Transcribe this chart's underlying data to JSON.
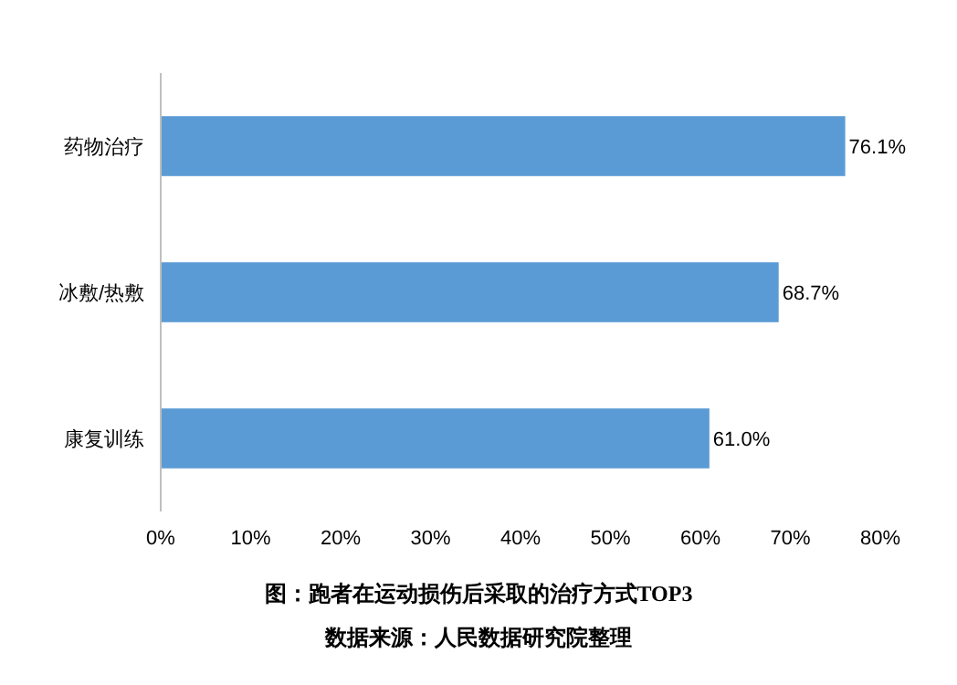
{
  "chart_data": {
    "type": "bar",
    "orientation": "horizontal",
    "title": "图：跑者在运动损伤后采取的治疗方式TOP3",
    "annotations": [
      "数据来源：人民数据研究院整理"
    ],
    "categories": [
      "药物治疗",
      "冰敷/热敷",
      "康复训练"
    ],
    "values": [
      76.1,
      68.7,
      61.0
    ],
    "color": "#5b9bd5",
    "value_labels": [
      "76.1%",
      "68.7%",
      "61.0%"
    ],
    "xlim": [
      0,
      80
    ],
    "xticks": [
      {
        "value": 0,
        "label": "0%"
      },
      {
        "value": 10,
        "label": "10%"
      },
      {
        "value": 20,
        "label": "20%"
      },
      {
        "value": 30,
        "label": "30%"
      },
      {
        "value": 40,
        "label": "40%"
      },
      {
        "value": 50,
        "label": "50%"
      },
      {
        "value": 60,
        "label": "60%"
      },
      {
        "value": 70,
        "label": "70%"
      },
      {
        "value": 80,
        "label": "80%"
      }
    ]
  }
}
